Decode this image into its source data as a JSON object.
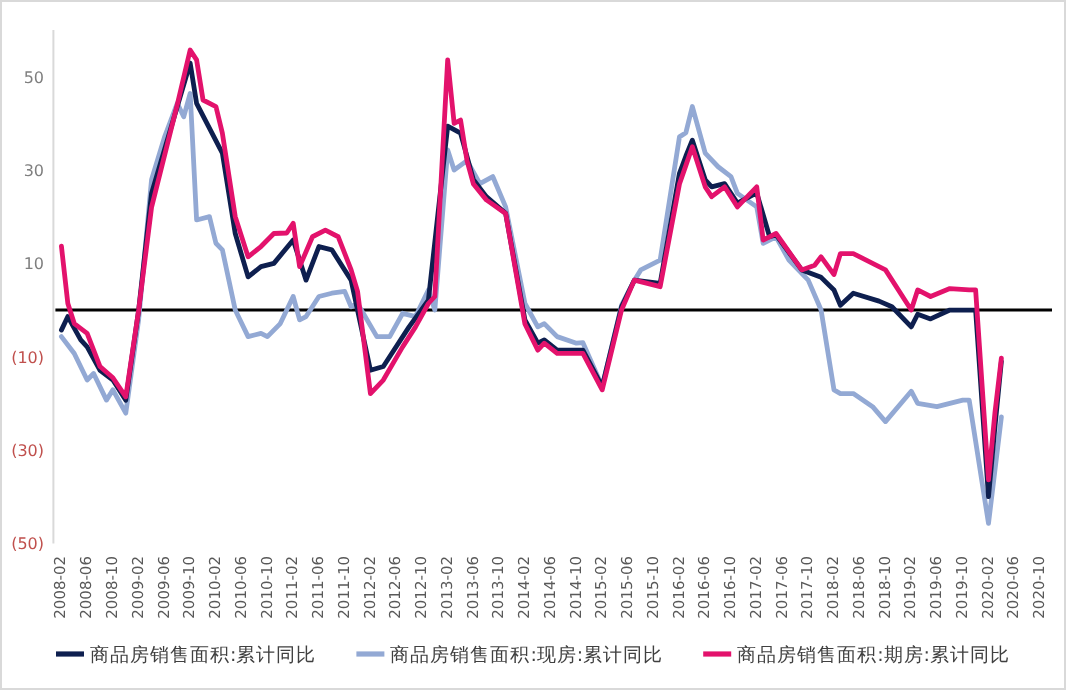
{
  "chart_data": {
    "type": "line",
    "xlim": [
      "2008-02",
      "2020-10"
    ],
    "xticks": [
      "2008-02",
      "2008-06",
      "2008-10",
      "2009-02",
      "2009-06",
      "2009-10",
      "2010-02",
      "2010-06",
      "2010-10",
      "2011-02",
      "2011-06",
      "2011-10",
      "2012-02",
      "2012-06",
      "2012-10",
      "2013-02",
      "2013-06",
      "2013-10",
      "2014-02",
      "2014-06",
      "2014-10",
      "2015-02",
      "2015-06",
      "2015-10",
      "2016-02",
      "2016-06",
      "2016-10",
      "2017-02",
      "2017-06",
      "2017-10",
      "2018-02",
      "2018-06",
      "2018-10",
      "2019-02",
      "2019-06",
      "2019-10",
      "2020-02",
      "2020-06",
      "2020-10"
    ],
    "ylim": [
      -50,
      60
    ],
    "yticks": [
      {
        "value": -50,
        "label": "(50)"
      },
      {
        "value": -30,
        "label": "(30)"
      },
      {
        "value": -10,
        "label": "(10)"
      },
      10,
      30,
      50
    ],
    "ref_lines": [
      {
        "axis": "y",
        "value": 0,
        "color": "#000000"
      }
    ],
    "legend": "bottom",
    "grid": false,
    "marker": "none",
    "line_style": "solid",
    "series": [
      {
        "name": "商品房销售面积:累计同比",
        "color": "#0e1f4f",
        "x": [
          "2008-02",
          "2008-03",
          "2008-05",
          "2008-06",
          "2008-08",
          "2008-10",
          "2008-12",
          "2009-02",
          "2009-04",
          "2009-08",
          "2009-10",
          "2009-11",
          "2010-03",
          "2010-05",
          "2010-07",
          "2010-09",
          "2010-11",
          "2011-02",
          "2011-04",
          "2011-06",
          "2011-08",
          "2011-11",
          "2012-02",
          "2012-04",
          "2012-08",
          "2012-11",
          "2013-02",
          "2013-04",
          "2013-06",
          "2013-08",
          "2013-11",
          "2014-02",
          "2014-04",
          "2014-05",
          "2014-07",
          "2014-11",
          "2015-02",
          "2015-05",
          "2015-07",
          "2015-11",
          "2016-02",
          "2016-03",
          "2016-04",
          "2016-06",
          "2016-07",
          "2016-09",
          "2016-11",
          "2017-02",
          "2017-04",
          "2017-05",
          "2017-09",
          "2017-12",
          "2018-02",
          "2018-03",
          "2018-05",
          "2018-09",
          "2018-11",
          "2019-02",
          "2019-03",
          "2019-05",
          "2019-08",
          "2019-11",
          "2019-12",
          "2020-02",
          "2020-03",
          "2020-04"
        ],
        "values": [
          -4.3,
          -1.4,
          -6.4,
          -7.9,
          -12.9,
          -15,
          -19.3,
          0,
          25,
          43.6,
          52.9,
          44.3,
          33.6,
          16.4,
          7.1,
          9.3,
          10,
          15,
          6.4,
          13.6,
          12.9,
          6.4,
          -12.9,
          -12.1,
          -3.6,
          2.1,
          39.4,
          37.9,
          27.9,
          24.3,
          20.7,
          -2.1,
          -7.1,
          -6.4,
          -8.6,
          -8.6,
          -16.4,
          0.7,
          6.4,
          5.7,
          29.3,
          33,
          36.4,
          27.9,
          26.4,
          27.1,
          22.9,
          25.1,
          15.7,
          16.1,
          8.6,
          7,
          4.3,
          1,
          3.6,
          1.9,
          0.7,
          -3.6,
          -0.9,
          -1.9,
          0,
          0,
          0,
          -40,
          -25,
          -11
        ]
      },
      {
        "name": "商品房销售面积:现房:累计同比",
        "color": "#93a9d4",
        "x": [
          "2008-02",
          "2008-04",
          "2008-06",
          "2008-07",
          "2008-09",
          "2008-10",
          "2008-12",
          "2009-02",
          "2009-04",
          "2009-06",
          "2009-08",
          "2009-09",
          "2009-10",
          "2009-11",
          "2010-01",
          "2010-02",
          "2010-03",
          "2010-05",
          "2010-07",
          "2010-09",
          "2010-10",
          "2010-12",
          "2011-02",
          "2011-03",
          "2011-04",
          "2011-06",
          "2011-08",
          "2011-10",
          "2011-11",
          "2011-12",
          "2012-03",
          "2012-05",
          "2012-07",
          "2012-09",
          "2012-11",
          "2012-12",
          "2013-02",
          "2013-03",
          "2013-05",
          "2013-07",
          "2013-09",
          "2013-11",
          "2014-02",
          "2014-04",
          "2014-05",
          "2014-07",
          "2014-10",
          "2014-11",
          "2015-02",
          "2015-05",
          "2015-07",
          "2015-08",
          "2015-11",
          "2016-02",
          "2016-03",
          "2016-04",
          "2016-06",
          "2016-08",
          "2016-10",
          "2016-11",
          "2017-02",
          "2017-03",
          "2017-05",
          "2017-07",
          "2017-10",
          "2017-12",
          "2018-02",
          "2018-03",
          "2018-05",
          "2018-08",
          "2018-10",
          "2019-02",
          "2019-03",
          "2019-06",
          "2019-08",
          "2019-10",
          "2019-11",
          "2020-02",
          "2020-04"
        ],
        "values": [
          -5.7,
          -9.3,
          -15,
          -13.6,
          -19.3,
          -17.1,
          -22.1,
          -2,
          27.9,
          37,
          44.3,
          41.4,
          46.4,
          19.3,
          20,
          14.3,
          12.9,
          0,
          -5.7,
          -5,
          -5.7,
          -2.9,
          2.9,
          -2.1,
          -1.4,
          2.9,
          3.6,
          4,
          0.7,
          1.4,
          -5.7,
          -5.7,
          -0.7,
          -1.4,
          4.3,
          0,
          34.3,
          30,
          32,
          27.1,
          28.6,
          22.1,
          1.4,
          -3.6,
          -2.9,
          -5.7,
          -7.1,
          -7,
          -16.4,
          1,
          6.4,
          8.6,
          10.7,
          37.1,
          38,
          43.6,
          33.6,
          30.7,
          28.6,
          25,
          22.1,
          14.3,
          15.7,
          10.7,
          6.4,
          0,
          -17.1,
          -17.9,
          -17.9,
          -20.7,
          -23.9,
          -17.4,
          -20,
          -20.7,
          -20,
          -19.3,
          -19.3,
          -45.7,
          -22.9
        ]
      },
      {
        "name": "商品房销售面积:期房:累计同比",
        "color": "#e3126c",
        "x": [
          "2008-02",
          "2008-03",
          "2008-04",
          "2008-06",
          "2008-08",
          "2008-10",
          "2008-12",
          "2009-02",
          "2009-04",
          "2009-08",
          "2009-10",
          "2009-11",
          "2009-12",
          "2010-02",
          "2010-03",
          "2010-05",
          "2010-07",
          "2010-09",
          "2010-11",
          "2011-01",
          "2011-02",
          "2011-03",
          "2011-05",
          "2011-07",
          "2011-09",
          "2011-11",
          "2011-12",
          "2012-02",
          "2012-04",
          "2012-07",
          "2012-09",
          "2012-11",
          "2012-12",
          "2013-02",
          "2013-03",
          "2013-04",
          "2013-05",
          "2013-06",
          "2013-08",
          "2013-11",
          "2014-02",
          "2014-04",
          "2014-05",
          "2014-07",
          "2014-11",
          "2015-02",
          "2015-05",
          "2015-07",
          "2015-11",
          "2016-02",
          "2016-03",
          "2016-04",
          "2016-06",
          "2016-07",
          "2016-09",
          "2016-11",
          "2017-02",
          "2017-03",
          "2017-05",
          "2017-09",
          "2017-11",
          "2017-12",
          "2018-02",
          "2018-03",
          "2018-05",
          "2018-08",
          "2018-10",
          "2019-02",
          "2019-03",
          "2019-05",
          "2019-08",
          "2019-11",
          "2019-12",
          "2020-02",
          "2020-03",
          "2020-04"
        ],
        "values": [
          13.7,
          1.4,
          -2.9,
          -5,
          -12.1,
          -14.5,
          -18.6,
          0,
          22,
          44,
          55.7,
          53.6,
          45,
          43.6,
          37.9,
          20,
          11.4,
          13.6,
          16.4,
          16.5,
          18.6,
          9.3,
          15.7,
          17.1,
          15.7,
          8.6,
          4,
          -17.9,
          -15,
          -7.9,
          -3.6,
          1.4,
          2.9,
          53.6,
          40,
          40.7,
          32,
          27,
          23.6,
          20.7,
          -3,
          -8.6,
          -7.1,
          -9.3,
          -9.3,
          -17.1,
          0,
          6.4,
          5,
          27,
          31,
          35,
          26.4,
          24.3,
          26.4,
          22.1,
          26.4,
          15,
          16.4,
          8.6,
          9.6,
          11.4,
          7.6,
          12.1,
          12.1,
          10,
          8.6,
          0,
          4.3,
          2.9,
          4.6,
          4.3,
          4.3,
          -36.4,
          -22,
          -10.3
        ]
      }
    ]
  }
}
